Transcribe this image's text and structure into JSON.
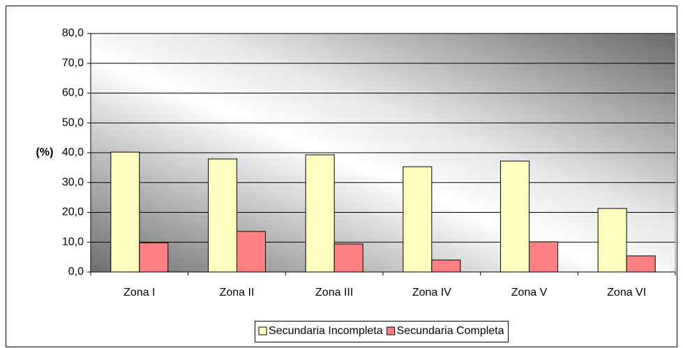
{
  "chart_data": {
    "type": "bar",
    "y_label": "(%)",
    "categories": [
      "Zona I",
      "Zona II",
      "Zona III",
      "Zona IV",
      "Zona V",
      "Zona VI"
    ],
    "series": [
      {
        "name": "Secundaria Incompleta",
        "color": "#ffffc0",
        "values": [
          40.2,
          37.9,
          39.3,
          35.3,
          37.2,
          21.3
        ]
      },
      {
        "name": "Secundaria Completa",
        "color": "#ff8080",
        "values": [
          9.8,
          13.6,
          9.4,
          4.0,
          10.1,
          5.4
        ]
      }
    ],
    "ylim": [
      0,
      80
    ],
    "yticks": [
      {
        "value": 0,
        "label": "0,0"
      },
      {
        "value": 10,
        "label": "10,0"
      },
      {
        "value": 20,
        "label": "20,0"
      },
      {
        "value": 30,
        "label": "30,0"
      },
      {
        "value": 40,
        "label": "40,0"
      },
      {
        "value": 50,
        "label": "50,0"
      },
      {
        "value": 60,
        "label": "60,0"
      },
      {
        "value": 70,
        "label": "70,0"
      },
      {
        "value": 80,
        "label": "80,0"
      }
    ],
    "grid": true,
    "legend": "bottom"
  }
}
